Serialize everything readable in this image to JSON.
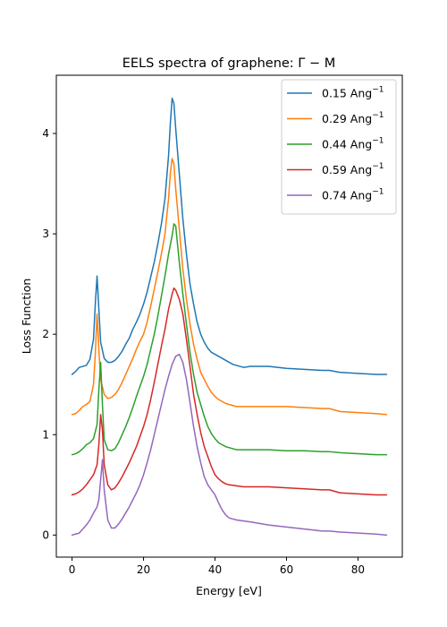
{
  "chart_data": {
    "type": "line",
    "title": "EELS spectra of graphene: Γ − M",
    "xlabel": "Energy [eV]",
    "ylabel": "Loss Function",
    "xlim": [
      -4.4,
      92.4
    ],
    "ylim": [
      -0.22,
      4.58
    ],
    "xticks": [
      0,
      20,
      40,
      60,
      80
    ],
    "yticks": [
      0,
      1,
      2,
      3,
      4
    ],
    "grid": false,
    "legend_position": "top-right",
    "series": [
      {
        "name": "0.15 Ang",
        "name_sup": "−1",
        "color": "#1f77b4",
        "points": [
          [
            0,
            1.6
          ],
          [
            1,
            1.63
          ],
          [
            2,
            1.67
          ],
          [
            3,
            1.68
          ],
          [
            4,
            1.69
          ],
          [
            5,
            1.75
          ],
          [
            6,
            1.95
          ],
          [
            6.5,
            2.3
          ],
          [
            7,
            2.58
          ],
          [
            7.5,
            2.25
          ],
          [
            8,
            1.92
          ],
          [
            9,
            1.76
          ],
          [
            10,
            1.72
          ],
          [
            11,
            1.72
          ],
          [
            12,
            1.74
          ],
          [
            13,
            1.78
          ],
          [
            14,
            1.83
          ],
          [
            15,
            1.9
          ],
          [
            16,
            1.96
          ],
          [
            17,
            2.05
          ],
          [
            18,
            2.12
          ],
          [
            19,
            2.2
          ],
          [
            20,
            2.3
          ],
          [
            21,
            2.42
          ],
          [
            22,
            2.57
          ],
          [
            23,
            2.72
          ],
          [
            24,
            2.9
          ],
          [
            25,
            3.1
          ],
          [
            26,
            3.35
          ],
          [
            27,
            3.78
          ],
          [
            27.5,
            4.1
          ],
          [
            28,
            4.35
          ],
          [
            28.5,
            4.3
          ],
          [
            29,
            4.05
          ],
          [
            30,
            3.6
          ],
          [
            31,
            3.15
          ],
          [
            32,
            2.8
          ],
          [
            33,
            2.5
          ],
          [
            34,
            2.3
          ],
          [
            35,
            2.12
          ],
          [
            36,
            2.0
          ],
          [
            37,
            1.92
          ],
          [
            38,
            1.86
          ],
          [
            39,
            1.82
          ],
          [
            40,
            1.8
          ],
          [
            41,
            1.78
          ],
          [
            42,
            1.76
          ],
          [
            43,
            1.74
          ],
          [
            44,
            1.72
          ],
          [
            45,
            1.7
          ],
          [
            46,
            1.69
          ],
          [
            47,
            1.68
          ],
          [
            48,
            1.67
          ],
          [
            50,
            1.68
          ],
          [
            55,
            1.68
          ],
          [
            60,
            1.66
          ],
          [
            65,
            1.65
          ],
          [
            70,
            1.64
          ],
          [
            72,
            1.64
          ],
          [
            75,
            1.62
          ],
          [
            80,
            1.61
          ],
          [
            85,
            1.6
          ],
          [
            88,
            1.6
          ]
        ]
      },
      {
        "name": "0.29 Ang",
        "name_sup": "−1",
        "color": "#ff7f0e",
        "points": [
          [
            0,
            1.2
          ],
          [
            1,
            1.21
          ],
          [
            2,
            1.24
          ],
          [
            3,
            1.28
          ],
          [
            4,
            1.3
          ],
          [
            5,
            1.33
          ],
          [
            6,
            1.5
          ],
          [
            6.5,
            1.8
          ],
          [
            7,
            2.2
          ],
          [
            7.5,
            1.85
          ],
          [
            8,
            1.55
          ],
          [
            9,
            1.4
          ],
          [
            10,
            1.36
          ],
          [
            11,
            1.37
          ],
          [
            12,
            1.4
          ],
          [
            13,
            1.45
          ],
          [
            14,
            1.52
          ],
          [
            15,
            1.6
          ],
          [
            16,
            1.68
          ],
          [
            17,
            1.76
          ],
          [
            18,
            1.85
          ],
          [
            19,
            1.93
          ],
          [
            20,
            2.0
          ],
          [
            21,
            2.12
          ],
          [
            22,
            2.28
          ],
          [
            23,
            2.45
          ],
          [
            24,
            2.62
          ],
          [
            25,
            2.8
          ],
          [
            26,
            3.0
          ],
          [
            27,
            3.35
          ],
          [
            27.5,
            3.6
          ],
          [
            28,
            3.75
          ],
          [
            28.5,
            3.7
          ],
          [
            29,
            3.45
          ],
          [
            30,
            3.05
          ],
          [
            31,
            2.65
          ],
          [
            32,
            2.35
          ],
          [
            33,
            2.1
          ],
          [
            34,
            1.9
          ],
          [
            35,
            1.75
          ],
          [
            36,
            1.62
          ],
          [
            37,
            1.55
          ],
          [
            38,
            1.48
          ],
          [
            39,
            1.42
          ],
          [
            40,
            1.38
          ],
          [
            41,
            1.35
          ],
          [
            42,
            1.33
          ],
          [
            43,
            1.31
          ],
          [
            44,
            1.3
          ],
          [
            45,
            1.29
          ],
          [
            46,
            1.28
          ],
          [
            48,
            1.28
          ],
          [
            50,
            1.28
          ],
          [
            55,
            1.28
          ],
          [
            60,
            1.28
          ],
          [
            65,
            1.27
          ],
          [
            70,
            1.26
          ],
          [
            72,
            1.26
          ],
          [
            75,
            1.23
          ],
          [
            80,
            1.22
          ],
          [
            85,
            1.21
          ],
          [
            88,
            1.2
          ]
        ]
      },
      {
        "name": "0.44 Ang",
        "name_sup": "−1",
        "color": "#2ca02c",
        "points": [
          [
            0,
            0.8
          ],
          [
            1,
            0.81
          ],
          [
            2,
            0.83
          ],
          [
            3,
            0.86
          ],
          [
            4,
            0.9
          ],
          [
            5,
            0.92
          ],
          [
            6,
            0.96
          ],
          [
            7,
            1.1
          ],
          [
            7.5,
            1.45
          ],
          [
            8,
            1.72
          ],
          [
            8.5,
            1.3
          ],
          [
            9,
            0.95
          ],
          [
            10,
            0.85
          ],
          [
            11,
            0.84
          ],
          [
            12,
            0.86
          ],
          [
            13,
            0.92
          ],
          [
            14,
            1.0
          ],
          [
            15,
            1.08
          ],
          [
            16,
            1.17
          ],
          [
            17,
            1.27
          ],
          [
            18,
            1.38
          ],
          [
            19,
            1.48
          ],
          [
            20,
            1.58
          ],
          [
            21,
            1.7
          ],
          [
            22,
            1.85
          ],
          [
            23,
            2.0
          ],
          [
            24,
            2.18
          ],
          [
            25,
            2.38
          ],
          [
            26,
            2.58
          ],
          [
            27,
            2.8
          ],
          [
            28,
            2.98
          ],
          [
            28.5,
            3.1
          ],
          [
            29,
            3.08
          ],
          [
            29.5,
            2.9
          ],
          [
            30,
            2.72
          ],
          [
            31,
            2.4
          ],
          [
            32,
            2.1
          ],
          [
            33,
            1.82
          ],
          [
            34,
            1.6
          ],
          [
            35,
            1.42
          ],
          [
            36,
            1.3
          ],
          [
            37,
            1.18
          ],
          [
            38,
            1.08
          ],
          [
            39,
            1.01
          ],
          [
            40,
            0.96
          ],
          [
            41,
            0.92
          ],
          [
            42,
            0.9
          ],
          [
            43,
            0.88
          ],
          [
            44,
            0.87
          ],
          [
            45,
            0.86
          ],
          [
            46,
            0.85
          ],
          [
            48,
            0.85
          ],
          [
            50,
            0.85
          ],
          [
            55,
            0.85
          ],
          [
            60,
            0.84
          ],
          [
            65,
            0.84
          ],
          [
            70,
            0.83
          ],
          [
            72,
            0.83
          ],
          [
            75,
            0.82
          ],
          [
            80,
            0.81
          ],
          [
            85,
            0.8
          ],
          [
            88,
            0.8
          ]
        ]
      },
      {
        "name": "0.59 Ang",
        "name_sup": "−1",
        "color": "#d62728",
        "points": [
          [
            0,
            0.4
          ],
          [
            1,
            0.41
          ],
          [
            2,
            0.43
          ],
          [
            3,
            0.46
          ],
          [
            4,
            0.5
          ],
          [
            5,
            0.55
          ],
          [
            6,
            0.6
          ],
          [
            7,
            0.7
          ],
          [
            7.5,
            0.9
          ],
          [
            8,
            1.2
          ],
          [
            8.5,
            1.05
          ],
          [
            9,
            0.7
          ],
          [
            10,
            0.5
          ],
          [
            11,
            0.45
          ],
          [
            12,
            0.47
          ],
          [
            13,
            0.52
          ],
          [
            14,
            0.58
          ],
          [
            15,
            0.65
          ],
          [
            16,
            0.72
          ],
          [
            17,
            0.8
          ],
          [
            18,
            0.88
          ],
          [
            19,
            0.98
          ],
          [
            20,
            1.08
          ],
          [
            21,
            1.2
          ],
          [
            22,
            1.35
          ],
          [
            23,
            1.52
          ],
          [
            24,
            1.7
          ],
          [
            25,
            1.88
          ],
          [
            26,
            2.05
          ],
          [
            27,
            2.25
          ],
          [
            28,
            2.4
          ],
          [
            28.5,
            2.46
          ],
          [
            29,
            2.44
          ],
          [
            30,
            2.35
          ],
          [
            31,
            2.2
          ],
          [
            32,
            1.95
          ],
          [
            33,
            1.68
          ],
          [
            34,
            1.4
          ],
          [
            35,
            1.2
          ],
          [
            36,
            1.02
          ],
          [
            37,
            0.88
          ],
          [
            38,
            0.78
          ],
          [
            39,
            0.68
          ],
          [
            40,
            0.6
          ],
          [
            41,
            0.56
          ],
          [
            42,
            0.53
          ],
          [
            43,
            0.51
          ],
          [
            44,
            0.5
          ],
          [
            46,
            0.49
          ],
          [
            48,
            0.48
          ],
          [
            50,
            0.48
          ],
          [
            55,
            0.48
          ],
          [
            60,
            0.47
          ],
          [
            65,
            0.46
          ],
          [
            70,
            0.45
          ],
          [
            72,
            0.45
          ],
          [
            75,
            0.42
          ],
          [
            80,
            0.41
          ],
          [
            85,
            0.4
          ],
          [
            88,
            0.4
          ]
        ]
      },
      {
        "name": "0.74 Ang",
        "name_sup": "−1",
        "color": "#9467bd",
        "points": [
          [
            0,
            0.0
          ],
          [
            1,
            0.01
          ],
          [
            2,
            0.02
          ],
          [
            3,
            0.06
          ],
          [
            4,
            0.1
          ],
          [
            5,
            0.15
          ],
          [
            6,
            0.22
          ],
          [
            7,
            0.28
          ],
          [
            7.5,
            0.35
          ],
          [
            8,
            0.55
          ],
          [
            8.5,
            0.75
          ],
          [
            9,
            0.45
          ],
          [
            10,
            0.15
          ],
          [
            11,
            0.07
          ],
          [
            12,
            0.07
          ],
          [
            13,
            0.11
          ],
          [
            14,
            0.16
          ],
          [
            15,
            0.22
          ],
          [
            16,
            0.28
          ],
          [
            17,
            0.35
          ],
          [
            18,
            0.42
          ],
          [
            19,
            0.5
          ],
          [
            20,
            0.6
          ],
          [
            21,
            0.72
          ],
          [
            22,
            0.85
          ],
          [
            23,
            1.0
          ],
          [
            24,
            1.15
          ],
          [
            25,
            1.3
          ],
          [
            26,
            1.45
          ],
          [
            27,
            1.58
          ],
          [
            28,
            1.7
          ],
          [
            29,
            1.78
          ],
          [
            30,
            1.8
          ],
          [
            31,
            1.72
          ],
          [
            32,
            1.55
          ],
          [
            33,
            1.32
          ],
          [
            34,
            1.08
          ],
          [
            35,
            0.88
          ],
          [
            36,
            0.72
          ],
          [
            37,
            0.58
          ],
          [
            38,
            0.5
          ],
          [
            39,
            0.45
          ],
          [
            40,
            0.4
          ],
          [
            41,
            0.32
          ],
          [
            42,
            0.25
          ],
          [
            43,
            0.2
          ],
          [
            44,
            0.17
          ],
          [
            45,
            0.16
          ],
          [
            46,
            0.15
          ],
          [
            48,
            0.14
          ],
          [
            50,
            0.13
          ],
          [
            55,
            0.1
          ],
          [
            60,
            0.08
          ],
          [
            65,
            0.06
          ],
          [
            70,
            0.04
          ],
          [
            72,
            0.04
          ],
          [
            75,
            0.03
          ],
          [
            80,
            0.02
          ],
          [
            85,
            0.01
          ],
          [
            88,
            0.0
          ]
        ]
      }
    ]
  }
}
